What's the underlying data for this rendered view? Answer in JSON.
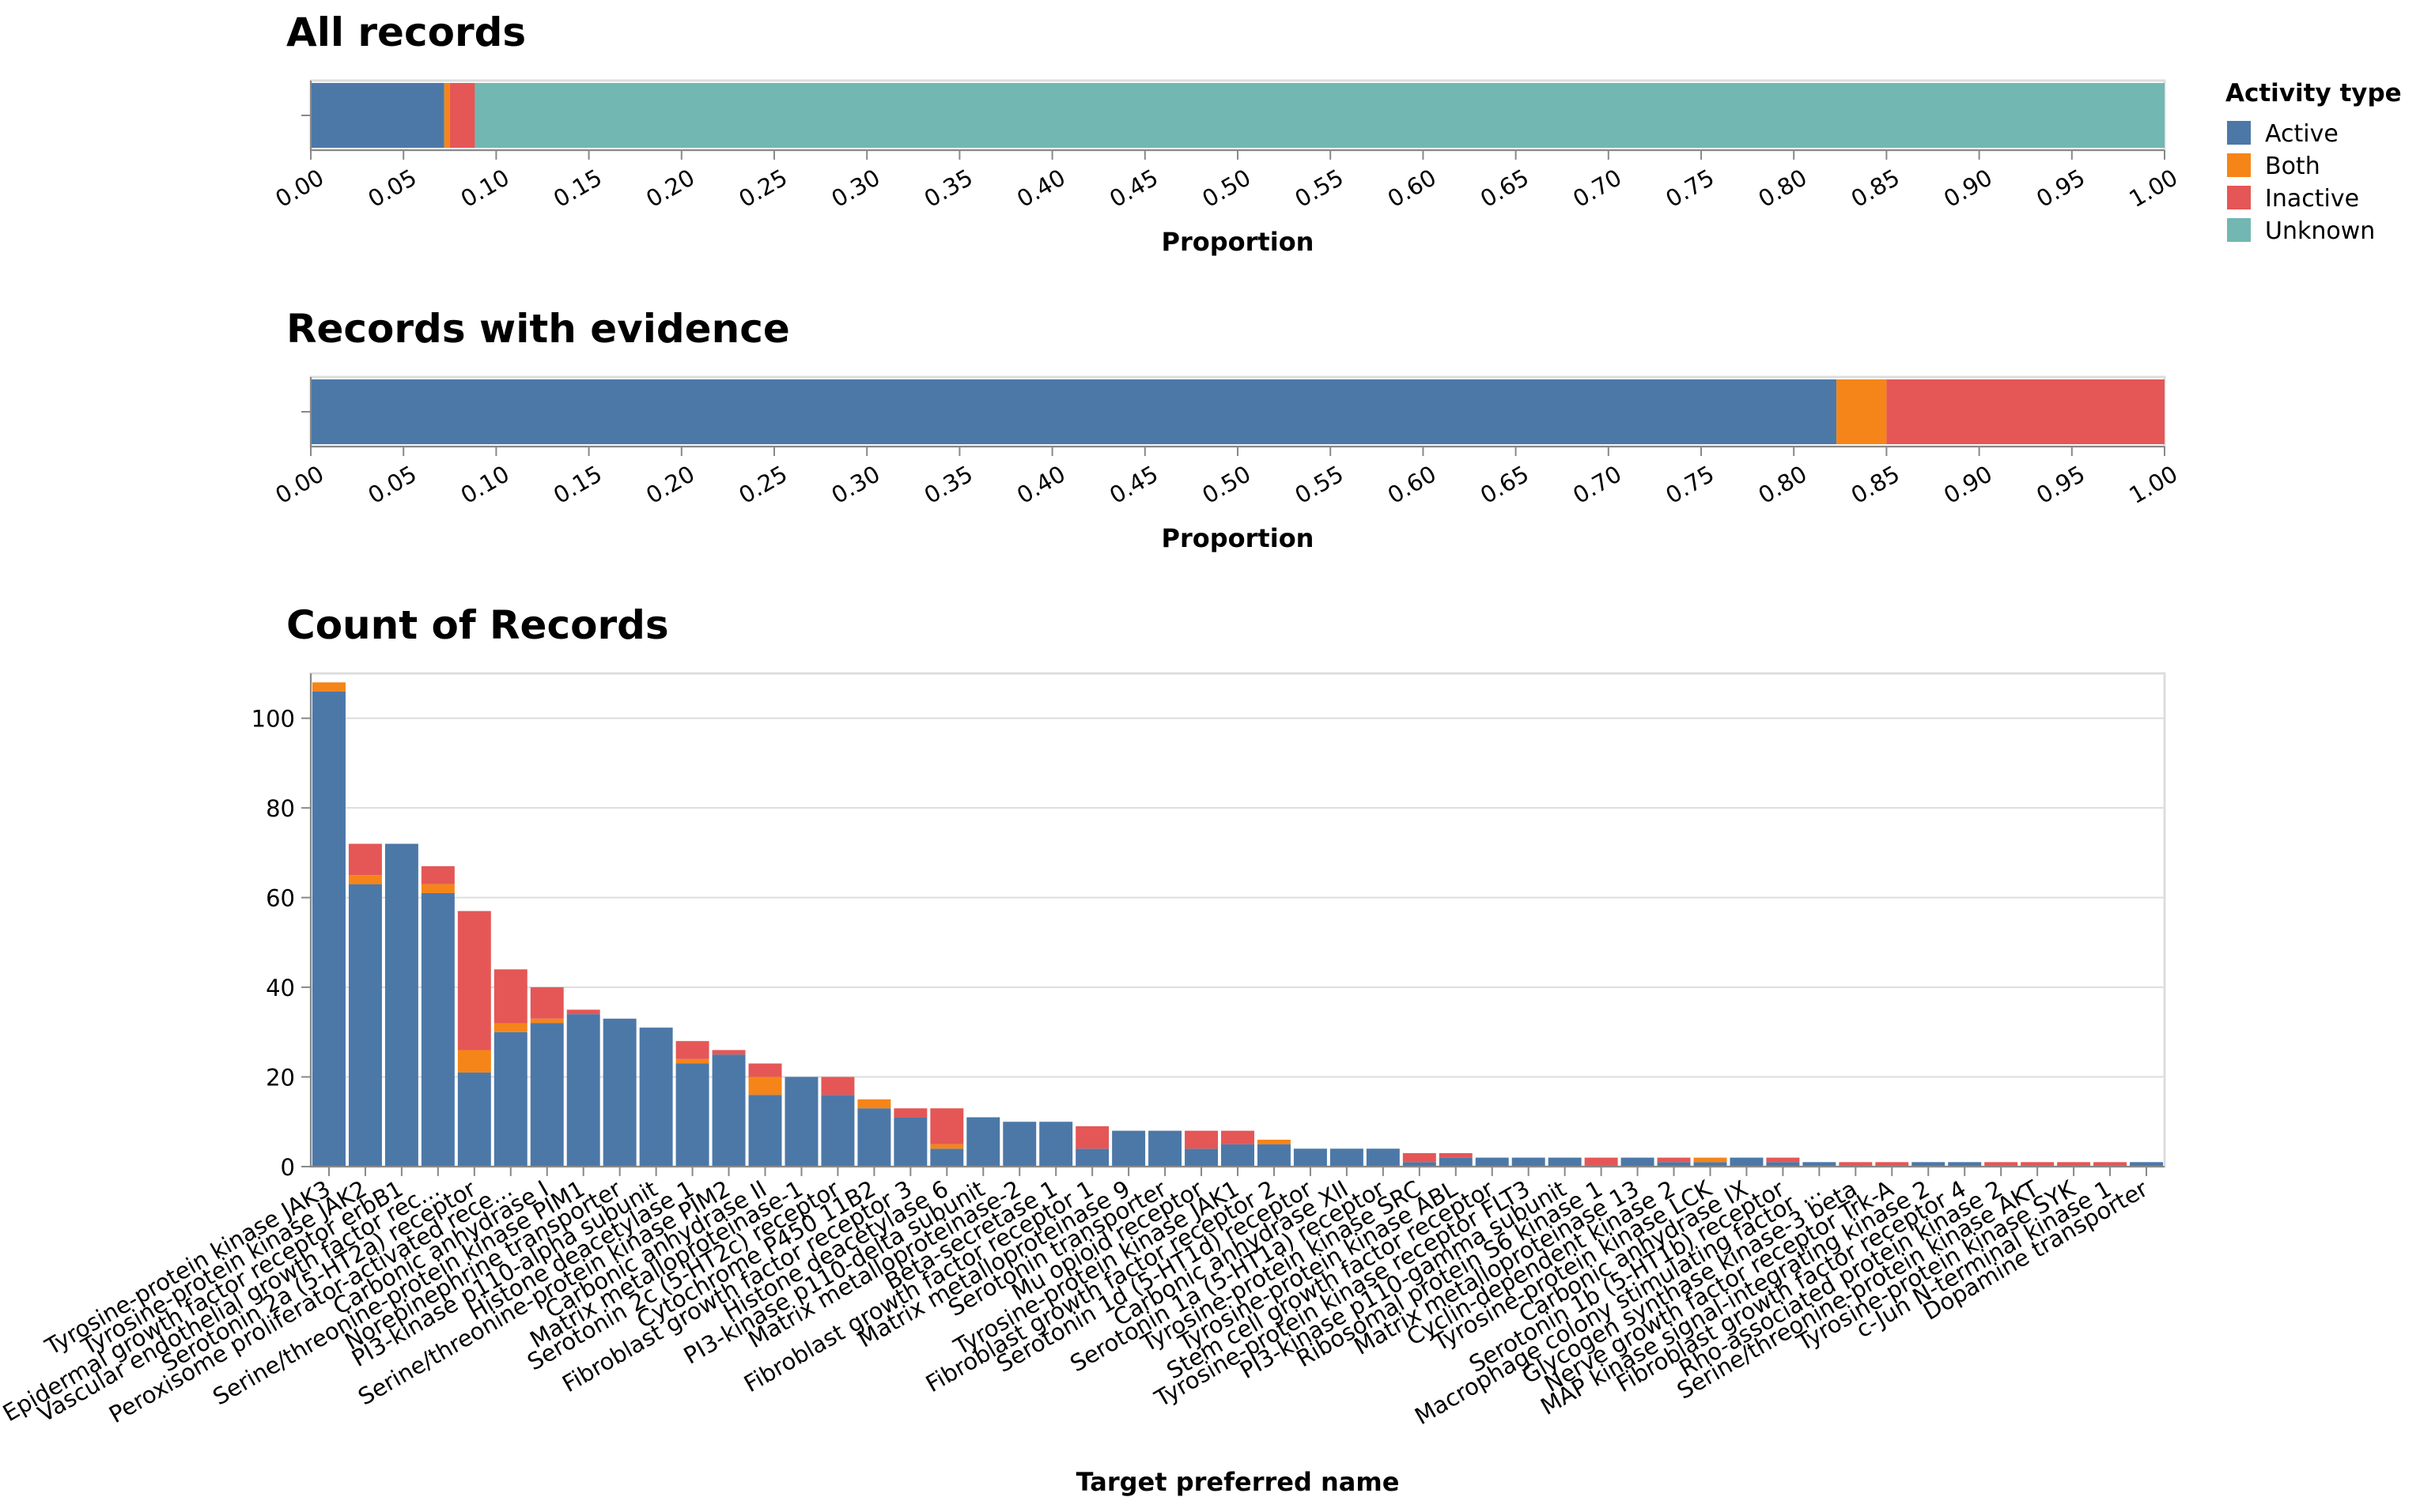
{
  "colors": {
    "Active": "#4c78a8",
    "Both": "#f58518",
    "Inactive": "#e45756",
    "Unknown": "#72b7b2"
  },
  "legend": {
    "title": "Activity type",
    "entries": [
      "Active",
      "Both",
      "Inactive",
      "Unknown"
    ]
  },
  "chart_data": [
    {
      "type": "bar",
      "orientation": "horizontal-stacked",
      "title": "All records",
      "xlabel": "Proportion",
      "xlim": [
        0,
        1
      ],
      "xticks": [
        "0.00",
        "0.05",
        "0.10",
        "0.15",
        "0.20",
        "0.25",
        "0.30",
        "0.35",
        "0.40",
        "0.45",
        "0.50",
        "0.55",
        "0.60",
        "0.65",
        "0.70",
        "0.75",
        "0.80",
        "0.85",
        "0.90",
        "0.95",
        "1.00"
      ],
      "series": [
        {
          "name": "Active",
          "value": 0.072
        },
        {
          "name": "Both",
          "value": 0.003
        },
        {
          "name": "Inactive",
          "value": 0.0135
        },
        {
          "name": "Unknown",
          "value": 0.9115
        }
      ]
    },
    {
      "type": "bar",
      "orientation": "horizontal-stacked",
      "title": "Records with evidence",
      "xlabel": "Proportion",
      "xlim": [
        0,
        1
      ],
      "xticks": [
        "0.00",
        "0.05",
        "0.10",
        "0.15",
        "0.20",
        "0.25",
        "0.30",
        "0.35",
        "0.40",
        "0.45",
        "0.50",
        "0.55",
        "0.60",
        "0.65",
        "0.70",
        "0.75",
        "0.80",
        "0.85",
        "0.90",
        "0.95",
        "1.00"
      ],
      "series": [
        {
          "name": "Active",
          "value": 0.823
        },
        {
          "name": "Both",
          "value": 0.027
        },
        {
          "name": "Inactive",
          "value": 0.15
        }
      ]
    },
    {
      "type": "bar",
      "orientation": "vertical-stacked",
      "title": "Count of Records",
      "xlabel": "Target preferred name",
      "ylabel": "",
      "ylim": [
        0,
        110
      ],
      "yticks": [
        "0",
        "20",
        "40",
        "60",
        "80",
        "100"
      ],
      "categories": [
        "Tyrosine-protein kinase JAK3",
        "Tyrosine-protein kinase JAK2",
        "Epidermal growth factor receptor erbB1",
        "Vascular endothelial growth factor rec...",
        "Serotonin 2a (5-HT2a) receptor",
        "Peroxisome proliferator-activated rece...",
        "Carbonic anhydrase I",
        "Serine/threonine-protein kinase PIM1",
        "Norepinephrine transporter",
        "PI3-kinase p110-alpha subunit",
        "Histone deacetylase 1",
        "Serine/threonine-protein kinase PIM2",
        "Carbonic anhydrase II",
        "Matrix metalloproteinase-1",
        "Serotonin 2c (5-HT2c) receptor",
        "Cytochrome P450 11B2",
        "Fibroblast growth factor receptor 3",
        "Histone deacetylase 6",
        "PI3-kinase p110-delta subunit",
        "Matrix metalloproteinase-2",
        "Beta-secretase 1",
        "Fibroblast growth factor receptor 1",
        "Matrix metalloproteinase 9",
        "Serotonin transporter",
        "Mu opioid receptor",
        "Tyrosine-protein kinase JAK1",
        "Fibroblast growth factor receptor 2",
        "Serotonin 1d (5-HT1d) receptor",
        "Carbonic anhydrase XII",
        "Serotonin 1a (5-HT1a) receptor",
        "Tyrosine-protein kinase SRC",
        "Tyrosine-protein kinase ABL",
        "Stem cell growth factor receptor",
        "Tyrosine-protein kinase receptor FLT3",
        "PI3-kinase p110-gamma subunit",
        "Ribosomal protein S6 kinase 1",
        "Matrix metalloproteinase 13",
        "Cyclin-dependent kinase 2",
        "Tyrosine-protein kinase LCK",
        "Carbonic anhydrase IX",
        "Serotonin 1b (5-HT1b) receptor",
        "Macrophage colony stimulating factor ...",
        "Glycogen synthase kinase-3 beta",
        "Nerve growth factor receptor Trk-A",
        "MAP kinase signal-integrating kinase 2",
        "Fibroblast growth factor receptor 4",
        "Rho-associated protein kinase 2",
        "Serine/threonine-protein kinase AKT",
        "Tyrosine-protein kinase SYK",
        "c-Jun N-terminal kinase 1",
        "Dopamine transporter"
      ],
      "series": [
        {
          "name": "Active",
          "values": [
            106,
            63,
            72,
            61,
            21,
            30,
            32,
            34,
            33,
            31,
            23,
            25,
            16,
            20,
            16,
            13,
            11,
            4,
            11,
            10,
            10,
            4,
            8,
            8,
            4,
            5,
            5,
            4,
            4,
            4,
            1,
            2,
            2,
            2,
            2,
            0,
            2,
            1,
            1,
            2,
            1,
            1,
            0,
            0,
            1,
            1,
            0,
            0,
            0,
            0,
            1
          ]
        },
        {
          "name": "Both",
          "values": [
            2,
            2,
            0,
            2,
            5,
            2,
            1,
            0,
            0,
            0,
            1,
            0,
            4,
            0,
            0,
            2,
            0,
            1,
            0,
            0,
            0,
            0,
            0,
            0,
            0,
            0,
            1,
            0,
            0,
            0,
            0,
            0,
            0,
            0,
            0,
            0,
            0,
            0,
            1,
            0,
            0,
            0,
            0,
            0,
            0,
            0,
            0,
            0,
            0,
            0,
            0
          ]
        },
        {
          "name": "Inactive",
          "values": [
            0,
            7,
            0,
            4,
            31,
            12,
            7,
            1,
            0,
            0,
            4,
            1,
            3,
            0,
            4,
            0,
            2,
            8,
            0,
            0,
            0,
            5,
            0,
            0,
            4,
            3,
            0,
            0,
            0,
            0,
            2,
            1,
            0,
            0,
            0,
            2,
            0,
            1,
            0,
            0,
            1,
            0,
            1,
            1,
            0,
            0,
            1,
            1,
            1,
            1,
            0
          ]
        }
      ]
    }
  ]
}
